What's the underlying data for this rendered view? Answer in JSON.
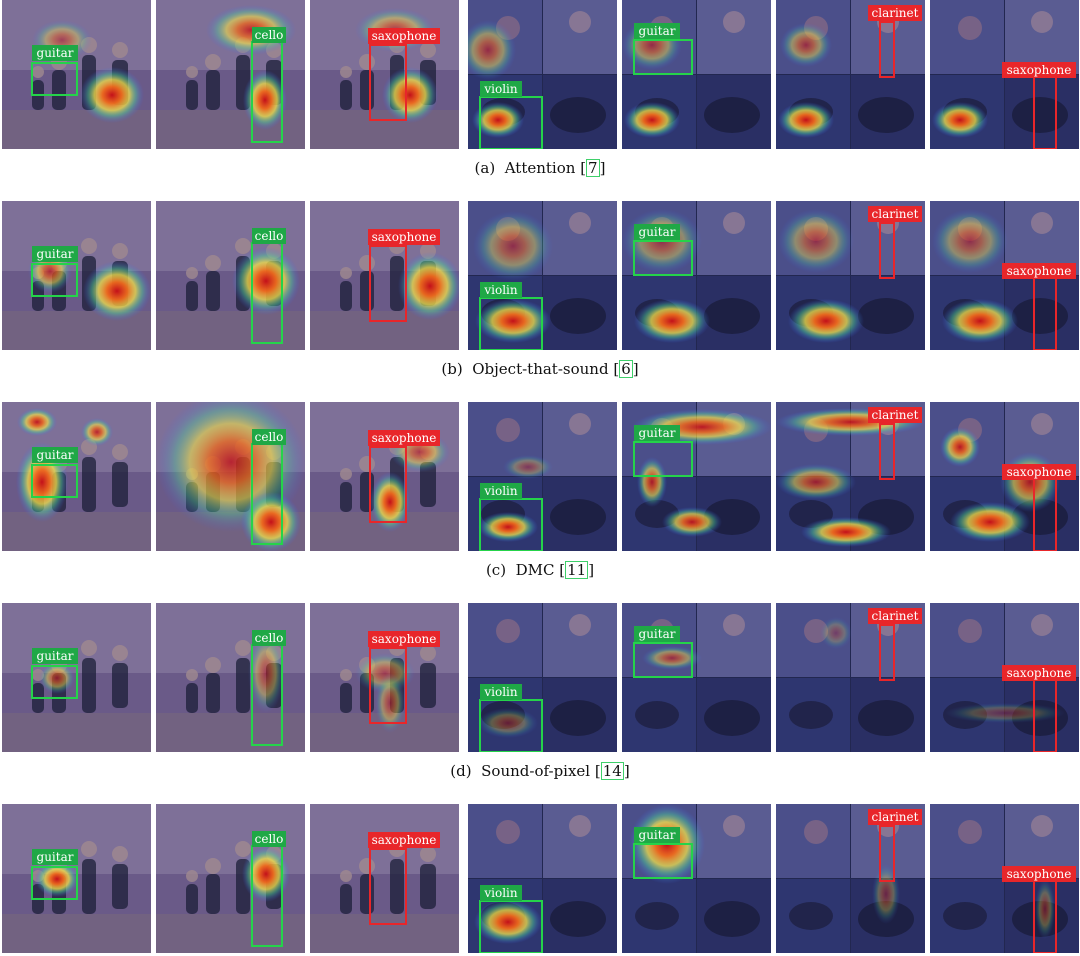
{
  "labels": {
    "guitar": "guitar",
    "cello": "cello",
    "saxophone": "saxophone",
    "violin": "violin",
    "clarinet": "clarinet"
  },
  "captions": [
    {
      "prefix": "(a)",
      "method": "Attention",
      "ref": "7"
    },
    {
      "prefix": "(b)",
      "method": "Object-that-sound",
      "ref": "6"
    },
    {
      "prefix": "(c)",
      "method": "DMC",
      "ref": "11"
    },
    {
      "prefix": "(d)",
      "method": "Sound-of-pixel",
      "ref": "14"
    }
  ],
  "colors": {
    "green_box": "#25d34a",
    "green_tag": "#1fa846",
    "red_box": "#e8262a",
    "red_tag": "#e8262a",
    "ref_box": "#3fd06a"
  }
}
